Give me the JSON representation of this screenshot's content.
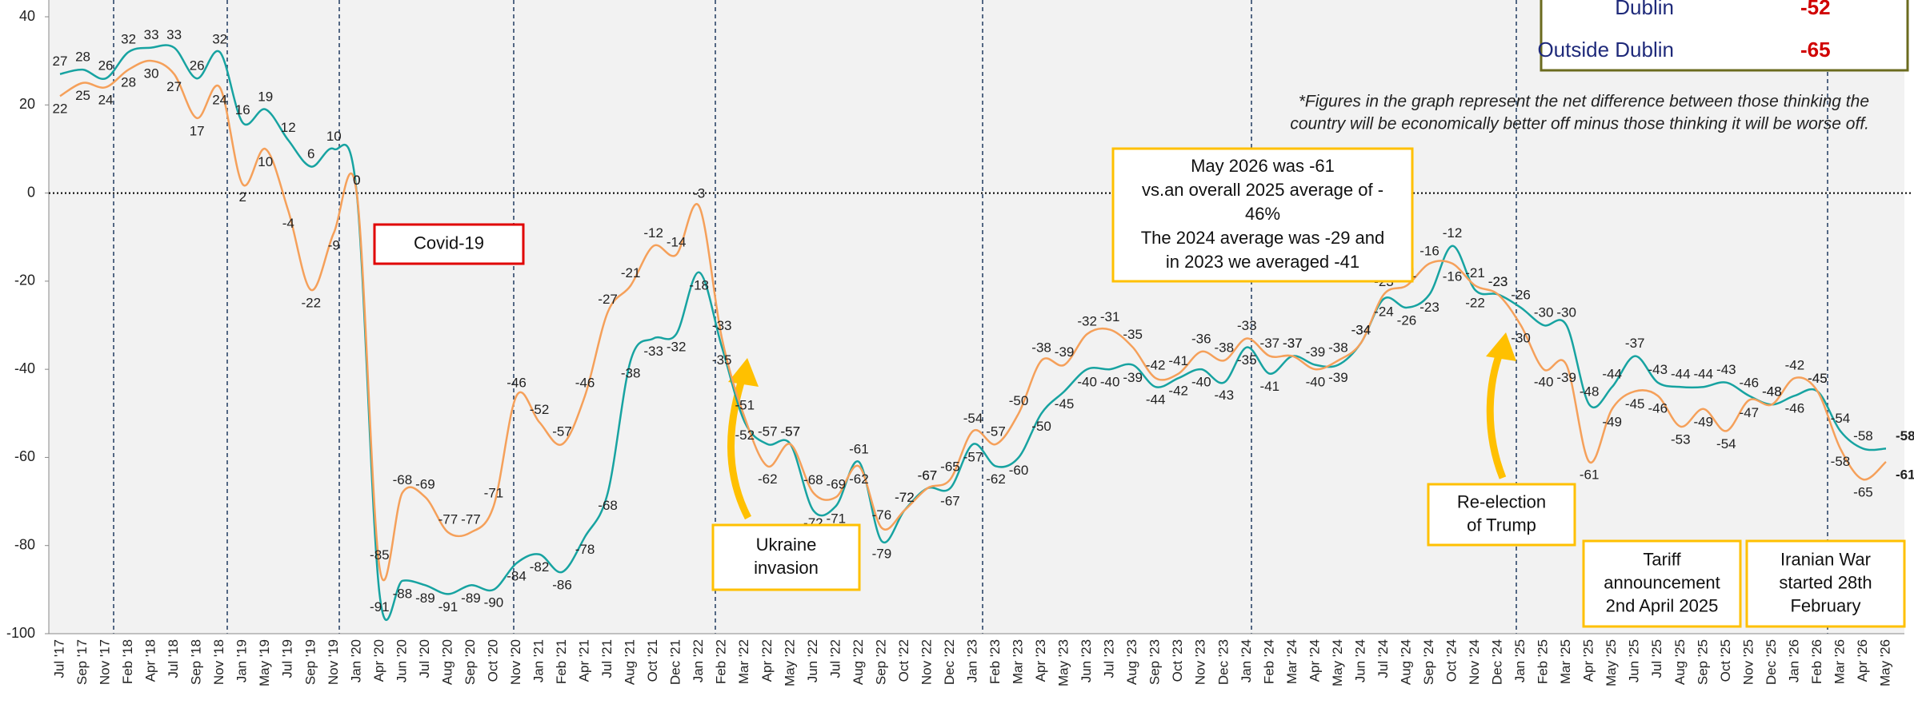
{
  "chart_data": {
    "type": "line",
    "categories": [
      "Jul '17",
      "Sep '17",
      "Nov '17",
      "Feb '18",
      "Apr '18",
      "Jul '18",
      "Sep '18",
      "Nov '18",
      "Jan '19",
      "May '19",
      "Jul '19",
      "Sep '19",
      "Nov '19",
      "Jan '20",
      "Apr '20",
      "Jun '20",
      "Jul '20",
      "Aug '20",
      "Sep '20",
      "Oct '20",
      "Nov '20",
      "Jan '21",
      "Feb '21",
      "Apr '21",
      "Jul '21",
      "Aug '21",
      "Oct '21",
      "Dec '21",
      "Jan '22",
      "Feb '22",
      "Mar '22",
      "Apr '22",
      "May '22",
      "Jun '22",
      "Jul '22",
      "Aug '22",
      "Sep '22",
      "Oct '22",
      "Nov '22",
      "Dec '22",
      "Jan '23",
      "Feb '23",
      "Mar '23",
      "Apr '23",
      "May '23",
      "Jun '23",
      "Jul '23",
      "Aug '23",
      "Sep '23",
      "Oct '23",
      "Nov '23",
      "Dec '23",
      "Jan '24",
      "Feb '24",
      "Mar '24",
      "Apr '24",
      "May '24",
      "Jun '24",
      "Jul '24",
      "Aug '24",
      "Sep '24",
      "Oct '24",
      "Nov '24",
      "Dec '24",
      "Jan '25",
      "Feb '25",
      "Mar '25",
      "Apr '25",
      "May '25",
      "Jun '25",
      "Jul '25",
      "Aug '25",
      "Sep '25",
      "Oct '25",
      "Nov '25",
      "Dec '25",
      "Jan '26",
      "Feb '26",
      "Mar '26",
      "Apr '26",
      "May '26"
    ],
    "series": [
      {
        "color": "#17a3a1",
        "values": [
          27,
          28,
          26,
          32,
          33,
          33,
          26,
          32,
          16,
          19,
          12,
          6,
          10,
          0,
          -91,
          -88,
          -89,
          -91,
          -89,
          -90,
          -84,
          -82,
          -86,
          -78,
          -68,
          -38,
          -33,
          -32,
          -18,
          -35,
          -52,
          -57,
          -57,
          -72,
          -71,
          -61,
          -79,
          -72,
          -67,
          -67,
          -57,
          -62,
          -60,
          -50,
          -45,
          -40,
          -40,
          -39,
          -44,
          -42,
          -40,
          -43,
          -35,
          -41,
          -37,
          -39,
          -39,
          -34,
          -24,
          -26,
          -23,
          -12,
          -22,
          -23,
          -26,
          -30,
          -30,
          -48,
          -44,
          -37,
          -43,
          -44,
          -44,
          -43,
          -46,
          -48,
          -46,
          -45,
          -54,
          -58,
          -58
        ]
      },
      {
        "color": "#f5a05a",
        "values": [
          22,
          25,
          24,
          28,
          30,
          27,
          17,
          24,
          2,
          10,
          -4,
          -22,
          -9,
          0,
          -85,
          -68,
          -69,
          -77,
          -77,
          -71,
          -46,
          -52,
          -57,
          -46,
          -27,
          -21,
          -12,
          -14,
          -3,
          -33,
          -51,
          -62,
          -57,
          -68,
          -69,
          -62,
          -76,
          -72,
          -67,
          -65,
          -54,
          -57,
          -50,
          -38,
          -39,
          -32,
          -31,
          -35,
          -42,
          -41,
          -36,
          -38,
          -33,
          -37,
          -37,
          -40,
          -38,
          -34,
          -23,
          -21,
          -16,
          -16,
          -21,
          -23,
          -30,
          -40,
          -39,
          -61,
          -49,
          -45,
          -46,
          -53,
          -49,
          -54,
          -47,
          -48,
          -42,
          -45,
          -58,
          -65,
          -61
        ]
      }
    ],
    "ylim": [
      -100,
      40
    ],
    "yticks": [
      -100,
      -80,
      -60,
      -40,
      -20,
      0,
      20,
      40
    ],
    "reference_line": 0,
    "annotations": [
      {
        "lines": [
          "Covid-19"
        ],
        "color": "#e00000"
      },
      {
        "lines": [
          "Ukraine",
          "invasion"
        ],
        "color": "#ffc000"
      },
      {
        "lines": [
          "May 2026  was -61",
          "vs.an overall 2025 average of -",
          "46%",
          "The 2024 average was  -29 and",
          "in  2023 we averaged -41"
        ],
        "color": "#ffc000"
      },
      {
        "lines": [
          "Re-election",
          "of Trump"
        ],
        "color": "#ffc000"
      },
      {
        "lines": [
          "Tariff",
          "announcement",
          "2nd April 2025"
        ],
        "color": "#ffc000"
      },
      {
        "lines": [
          "Iranian War",
          "started 28th",
          "February"
        ],
        "color": "#ffc000"
      }
    ],
    "footnote": [
      "*Figures in the graph represent the net difference between those thinking the",
      "country will be economically better off minus those thinking it will be worse off."
    ]
  },
  "summary": {
    "rows": [
      {
        "label": "Dublin",
        "value": -52
      },
      {
        "label": "Outside Dublin",
        "value": -65
      }
    ]
  }
}
